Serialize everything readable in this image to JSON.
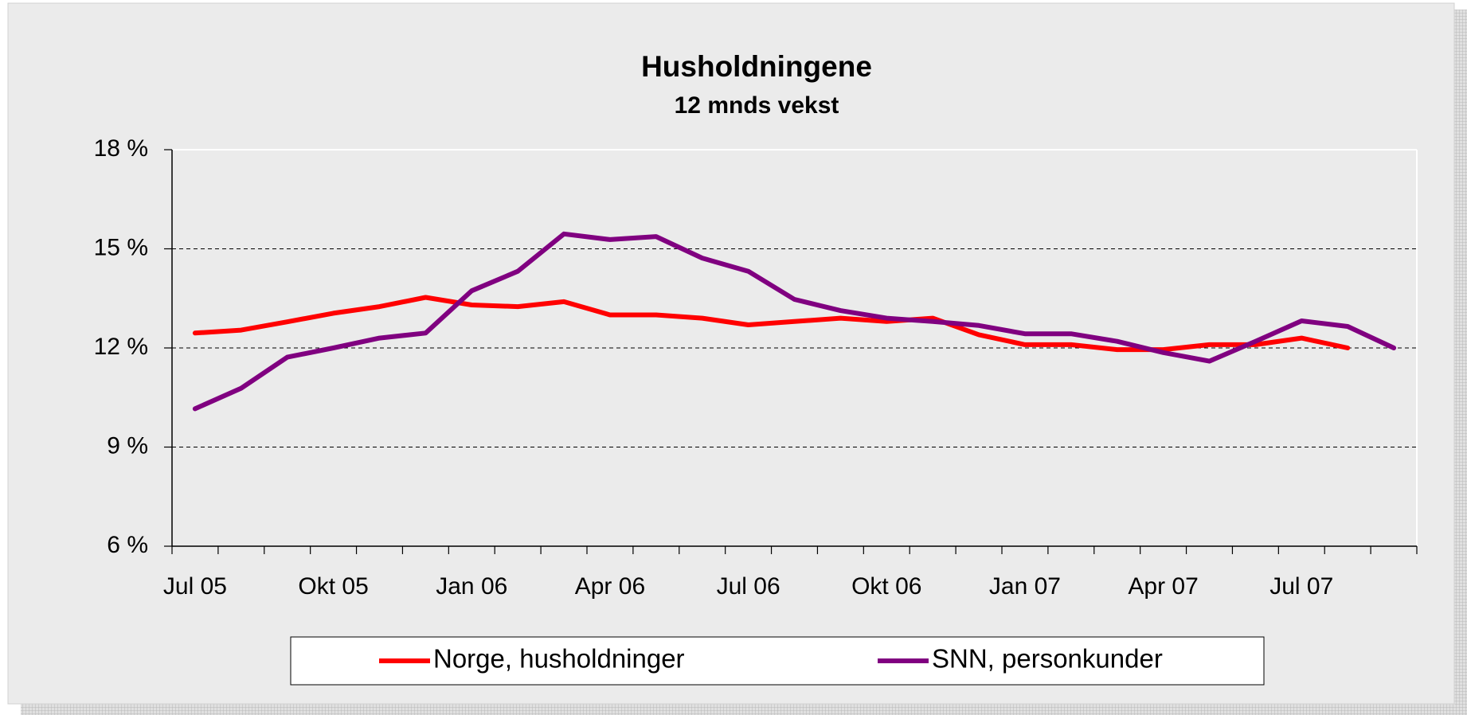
{
  "chart_data": {
    "type": "line",
    "title": "Husholdningene",
    "subtitle": "12 mnds vekst",
    "categories": [
      "Jul 05",
      null,
      null,
      "Okt 05",
      null,
      null,
      "Jan 06",
      null,
      null,
      "Apr 06",
      null,
      null,
      "Jul 06",
      null,
      null,
      "Okt 06",
      null,
      null,
      "Jan 07",
      null,
      null,
      "Apr 07",
      null,
      null,
      "Jul 07",
      null,
      null
    ],
    "series": [
      {
        "name": "Norge, husholdninger",
        "color": "#ff0000",
        "values": [
          12.45,
          12.54,
          12.79,
          13.05,
          13.25,
          13.53,
          13.3,
          13.25,
          13.4,
          13.0,
          13.0,
          12.9,
          12.7,
          12.8,
          12.9,
          12.8,
          12.9,
          12.4,
          12.1,
          12.1,
          11.95,
          11.95,
          12.1,
          12.1,
          12.3,
          12.0,
          null
        ]
      },
      {
        "name": "SNN, personkunder",
        "color": "#800080",
        "values": [
          10.16,
          10.78,
          11.72,
          12.0,
          12.3,
          12.45,
          13.73,
          14.32,
          15.45,
          15.28,
          15.37,
          14.72,
          14.32,
          13.47,
          13.13,
          12.9,
          12.8,
          12.68,
          12.43,
          12.43,
          12.2,
          11.86,
          11.6,
          12.2,
          12.82,
          12.65,
          12.0
        ]
      }
    ],
    "ylim": [
      6,
      18
    ],
    "yticks": [
      {
        "value": 6,
        "label": "6 %"
      },
      {
        "value": 9,
        "label": "9 %"
      },
      {
        "value": 12,
        "label": "12 %"
      },
      {
        "value": 15,
        "label": "15 %"
      },
      {
        "value": 18,
        "label": "18 %"
      }
    ],
    "grid": true,
    "legend": "bottom"
  }
}
